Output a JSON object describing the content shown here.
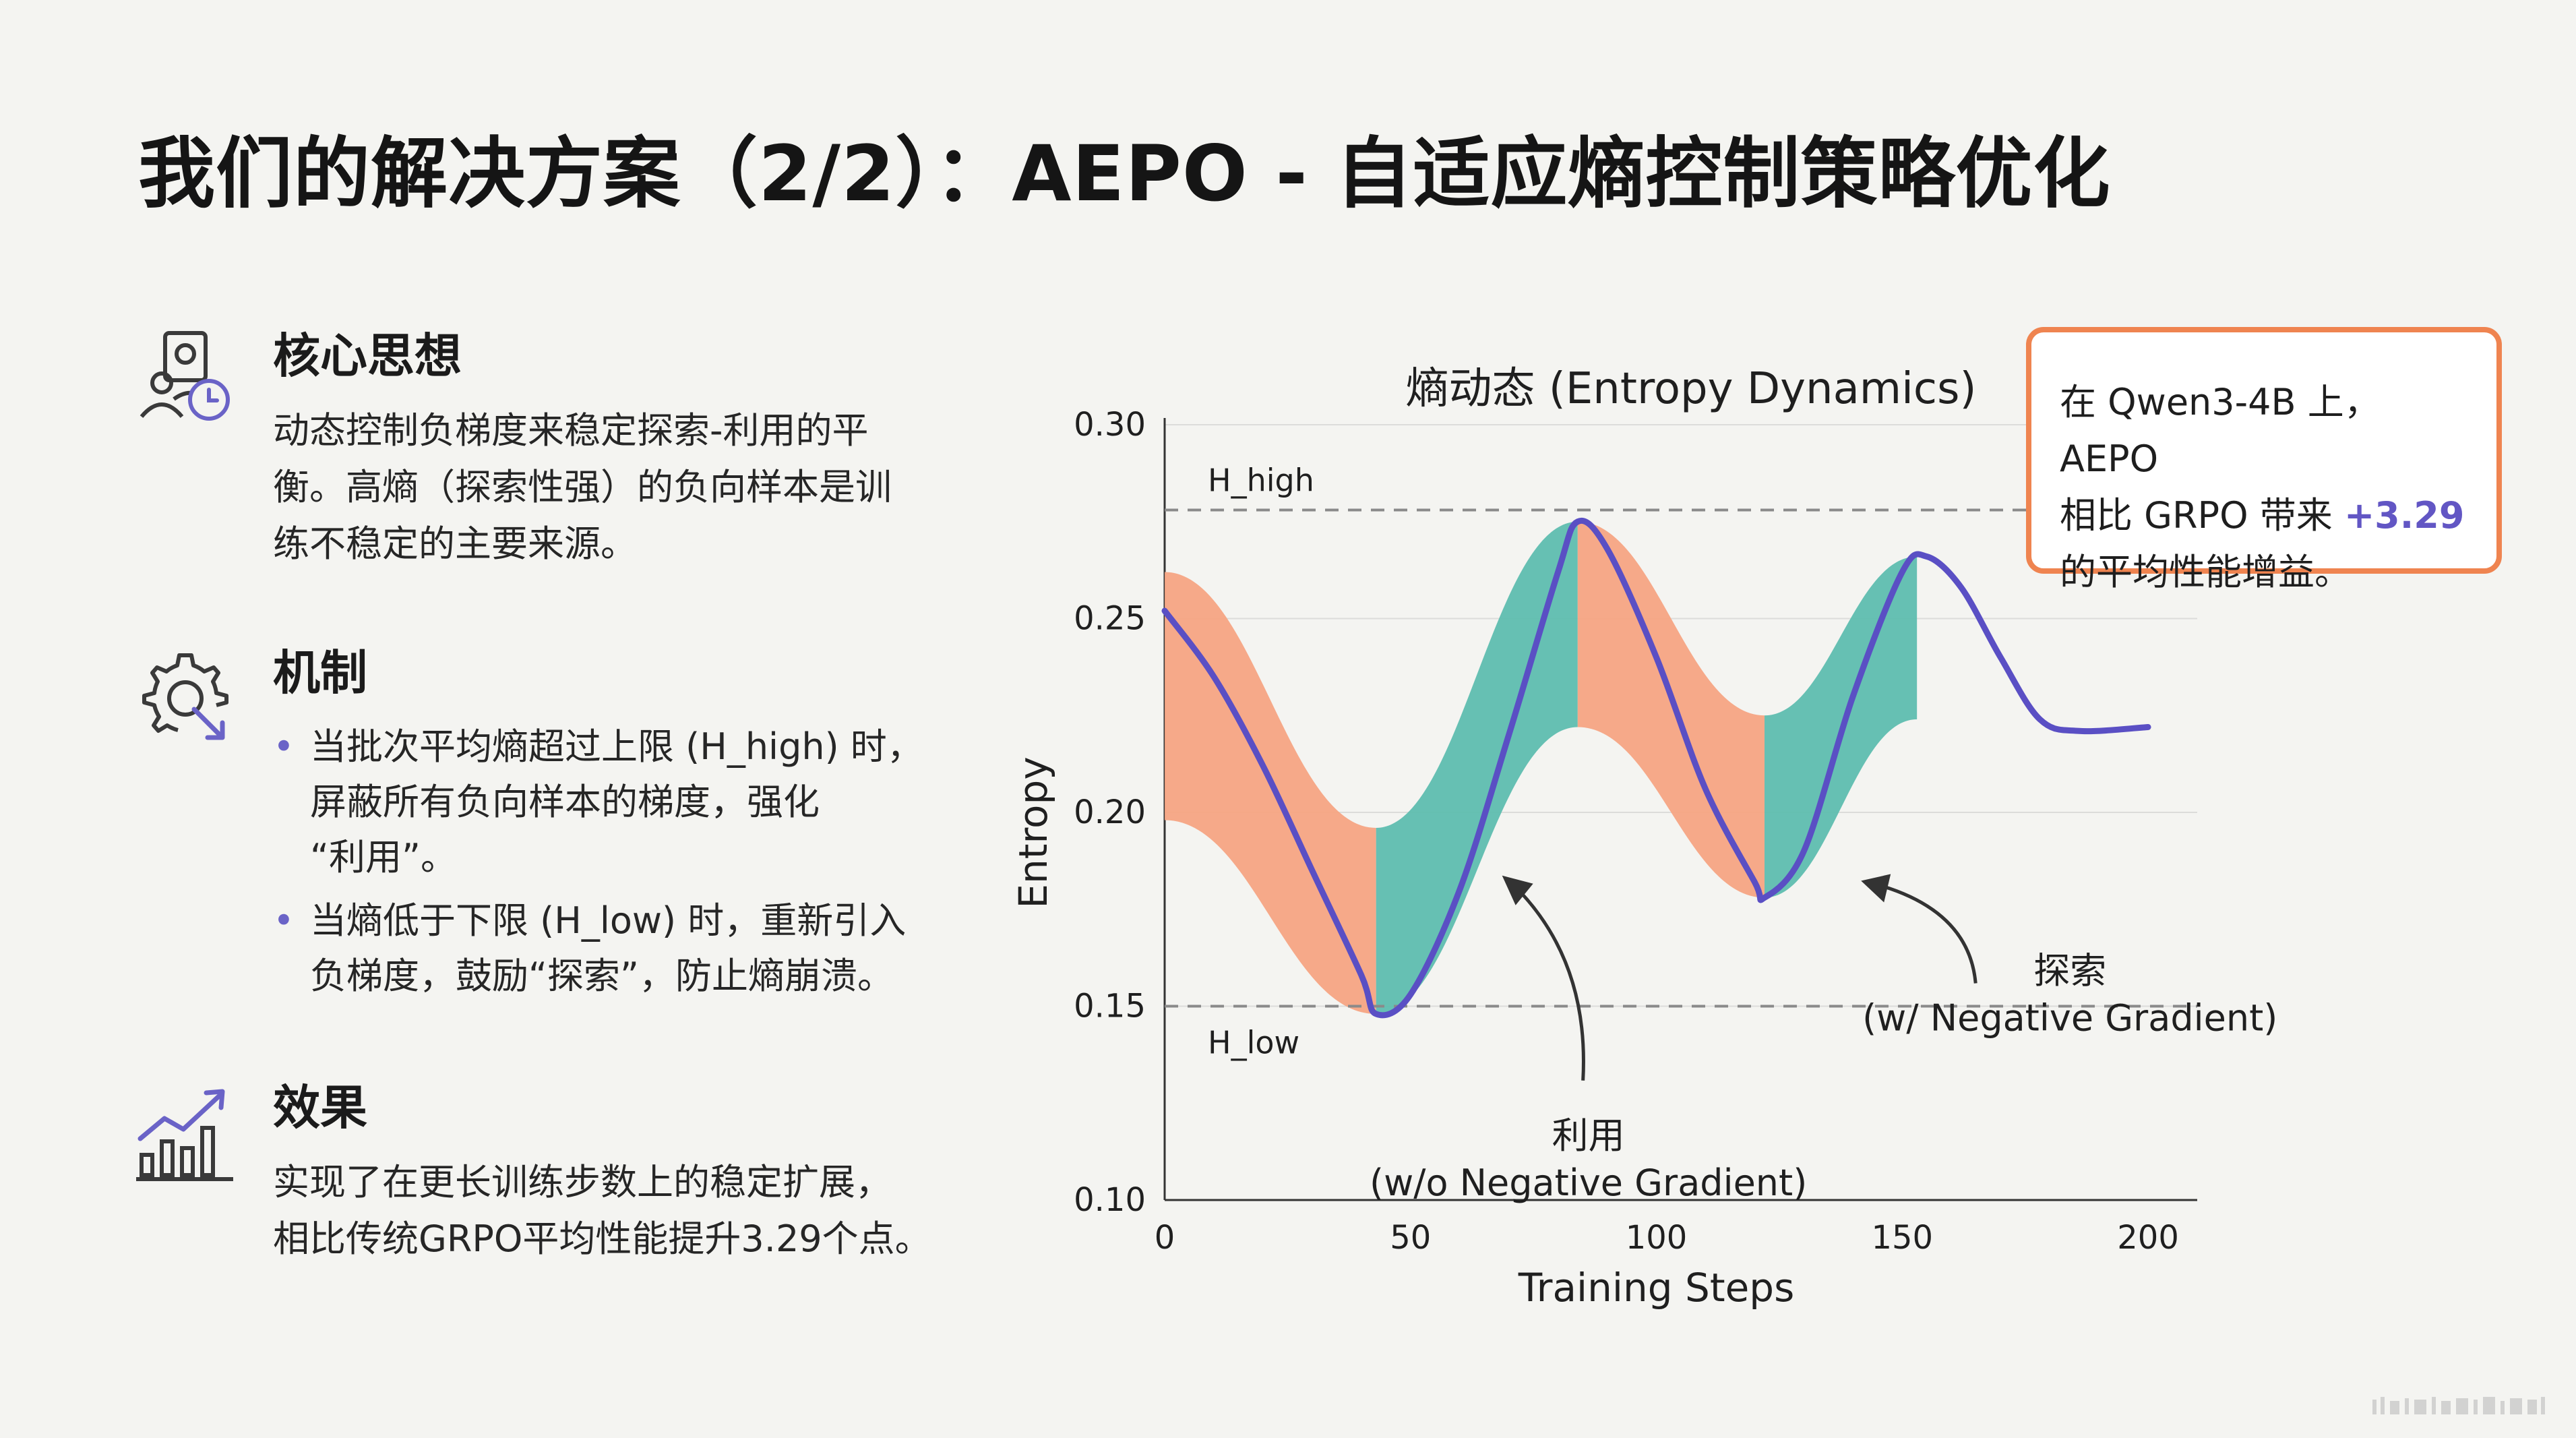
{
  "title": "我们的解决方案（2/2）：AEPO - 自适应熵控制策略优化",
  "sections": [
    {
      "icon": "person-clock-icon",
      "heading": "核心思想",
      "lines": [
        "动态控制负梯度来稳定探索-利用的平",
        "衡。高熵（探索性强）的负向样本是训",
        "练不稳定的主要来源。"
      ]
    },
    {
      "icon": "gear-arrow-icon",
      "heading": "机制",
      "bullets": [
        {
          "lines": [
            "当批次平均熵超过上限 (H_high) 时，",
            "屏蔽所有负向样本的梯度，强化",
            "“利用”。"
          ]
        },
        {
          "lines": [
            "当熵低于下限 (H_low) 时，重新引入",
            "负梯度，鼓励“探索”，防止熵崩溃。"
          ]
        }
      ]
    },
    {
      "icon": "bar-chart-growth-icon",
      "heading": "效果",
      "lines": [
        "实现了在更长训练步数上的稳定扩展，",
        "相比传统GRPO平均性能提升3.29个点。"
      ]
    }
  ],
  "callout": {
    "line1": "在 Qwen3-4B 上，AEPO",
    "line2_prefix": "相比 GRPO 带来 ",
    "line2_value": "+3.29",
    "line3": "的平均性能增益。"
  },
  "chart_data": {
    "type": "line",
    "title": "熵动态 (Entropy Dynamics)",
    "xlabel": "Training Steps",
    "ylabel": "Entropy",
    "xlim": [
      0,
      210
    ],
    "ylim": [
      0.1,
      0.3
    ],
    "xticks": [
      0,
      50,
      100,
      150,
      200
    ],
    "yticks": [
      "0.10",
      "0.15",
      "0.20",
      "0.25",
      "0.30"
    ],
    "grid": true,
    "thresholds": [
      {
        "name": "H_high",
        "value": 0.278
      },
      {
        "name": "H_low",
        "value": 0.15
      }
    ],
    "series": [
      {
        "color": "#5a4fc4",
        "points": [
          [
            0,
            0.252
          ],
          [
            10,
            0.235
          ],
          [
            20,
            0.212
          ],
          [
            30,
            0.185
          ],
          [
            40,
            0.158
          ],
          [
            43,
            0.148
          ],
          [
            50,
            0.153
          ],
          [
            60,
            0.18
          ],
          [
            70,
            0.22
          ],
          [
            80,
            0.262
          ],
          [
            84,
            0.275
          ],
          [
            90,
            0.268
          ],
          [
            100,
            0.24
          ],
          [
            110,
            0.206
          ],
          [
            120,
            0.182
          ],
          [
            122,
            0.178
          ],
          [
            130,
            0.19
          ],
          [
            140,
            0.23
          ],
          [
            150,
            0.262
          ],
          [
            155,
            0.266
          ],
          [
            162,
            0.258
          ],
          [
            170,
            0.24
          ],
          [
            178,
            0.224
          ],
          [
            186,
            0.221
          ],
          [
            200,
            0.222
          ]
        ]
      }
    ],
    "bands": [
      {
        "phase": "exploit",
        "color": "#f6a483",
        "x": [
          0,
          43
        ],
        "upper": [
          0.262,
          0.196
        ],
        "lower": [
          0.198,
          0.148
        ]
      },
      {
        "phase": "explore",
        "color": "#5ebdaf",
        "x": [
          43,
          84
        ],
        "upper": [
          0.196,
          0.275
        ],
        "lower": [
          0.148,
          0.222
        ]
      },
      {
        "phase": "exploit",
        "color": "#f6a483",
        "x": [
          84,
          122
        ],
        "upper": [
          0.275,
          0.225
        ],
        "lower": [
          0.222,
          0.178
        ]
      },
      {
        "phase": "explore",
        "color": "#5ebdaf",
        "x": [
          122,
          153
        ],
        "upper": [
          0.225,
          0.266
        ],
        "lower": [
          0.178,
          0.224
        ]
      }
    ],
    "annotations": [
      {
        "label": "利用",
        "sub": "(w/o Negative Gradient)",
        "anchor_x": 70,
        "anchor_y": 0.183
      },
      {
        "label": "探索",
        "sub": "(w/ Negative Gradient)",
        "anchor_x": 143,
        "anchor_y": 0.182
      }
    ]
  }
}
